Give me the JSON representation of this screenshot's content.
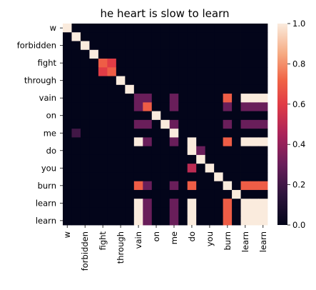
{
  "chart_data": {
    "type": "heatmap",
    "title": "he heart is slow to learn",
    "xlabel": "",
    "ylabel": "",
    "tokens": [
      "w",
      "",
      "forbidden",
      "",
      "fight",
      "",
      "through",
      "",
      "vain",
      "",
      "on",
      "",
      "me",
      "",
      "do",
      "",
      "you",
      "",
      "burn",
      "",
      "learn",
      "",
      "learn"
    ],
    "y_tick_labels": [
      "w",
      "forbidden",
      "fight",
      "through",
      "vain",
      "on",
      "me",
      "do",
      "you",
      "burn",
      "learn",
      "learn"
    ],
    "x_tick_labels": [
      "w",
      "forbidden",
      "fight",
      "through",
      "vain",
      "on",
      "me",
      "do",
      "you",
      "burn",
      "learn",
      "learn"
    ],
    "colorbar": {
      "min": 0.0,
      "max": 1.0,
      "ticks": [
        "0.0",
        "0.2",
        "0.4",
        "0.6",
        "0.8",
        "1.0"
      ]
    },
    "colormap": "rocket",
    "matrix": [
      [
        1,
        0,
        0,
        0,
        0,
        0,
        0,
        0,
        0,
        0,
        0,
        0,
        0,
        0,
        0,
        0,
        0,
        0,
        0,
        0,
        0,
        0,
        0
      ],
      [
        0,
        1,
        0,
        0,
        0,
        0,
        0,
        0,
        0,
        0,
        0,
        0,
        0,
        0,
        0,
        0,
        0,
        0,
        0,
        0,
        0,
        0,
        0
      ],
      [
        0,
        0,
        1,
        0,
        0,
        0,
        0,
        0,
        0,
        0,
        0,
        0,
        0,
        0,
        0,
        0,
        0,
        0,
        0,
        0,
        0,
        0,
        0
      ],
      [
        0,
        0,
        0,
        1,
        0,
        0,
        0,
        0,
        0,
        0,
        0,
        0,
        0,
        0,
        0,
        0,
        0,
        0,
        0,
        0,
        0,
        0,
        0
      ],
      [
        0,
        0,
        0,
        0,
        0.7,
        0.6,
        0,
        0,
        0,
        0,
        0,
        0,
        0,
        0,
        0,
        0,
        0,
        0,
        0,
        0,
        0,
        0,
        0
      ],
      [
        0,
        0,
        0,
        0,
        0.6,
        0.7,
        0,
        0,
        0,
        0,
        0,
        0,
        0,
        0,
        0,
        0,
        0,
        0,
        0,
        0,
        0,
        0,
        0
      ],
      [
        0,
        0,
        0,
        0,
        0,
        0,
        1,
        0,
        0,
        0,
        0,
        0,
        0,
        0,
        0,
        0,
        0,
        0,
        0,
        0,
        0,
        0,
        0
      ],
      [
        0,
        0,
        0,
        0,
        0,
        0,
        0,
        1,
        0,
        0,
        0,
        0,
        0,
        0,
        0,
        0,
        0,
        0,
        0,
        0,
        0,
        0,
        0
      ],
      [
        0,
        0,
        0,
        0,
        0,
        0,
        0,
        0,
        0.3,
        0.3,
        0,
        0,
        0.3,
        0,
        0,
        0,
        0,
        0,
        0.7,
        0,
        1,
        1,
        1
      ],
      [
        0,
        0,
        0,
        0,
        0,
        0,
        0,
        0,
        0.3,
        0.7,
        0,
        0,
        0.3,
        0,
        0,
        0,
        0,
        0,
        0.3,
        0,
        0.3,
        0.3,
        0.3
      ],
      [
        0,
        0,
        0,
        0,
        0,
        0,
        0,
        0,
        0,
        0,
        1,
        0,
        0,
        0,
        0,
        0,
        0,
        0,
        0,
        0,
        0,
        0,
        0
      ],
      [
        0,
        0,
        0,
        0,
        0,
        0,
        0,
        0,
        0.3,
        0.3,
        0,
        1,
        0.3,
        0,
        0,
        0,
        0,
        0,
        0.3,
        0,
        0.3,
        0.3,
        0.3
      ],
      [
        0,
        0.2,
        0,
        0,
        0,
        0,
        0,
        0,
        0,
        0,
        0,
        0,
        1,
        0,
        0,
        0,
        0,
        0,
        0,
        0,
        0,
        0,
        0
      ],
      [
        0,
        0,
        0,
        0,
        0,
        0,
        0,
        0,
        1,
        0.3,
        0,
        0,
        0.3,
        0,
        1,
        0,
        0,
        0,
        0.7,
        0,
        1,
        1,
        1
      ],
      [
        0,
        0,
        0,
        0,
        0,
        0,
        0,
        0,
        0,
        0,
        0,
        0,
        0,
        0,
        1,
        0.3,
        0,
        0,
        0,
        0,
        0,
        0,
        0
      ],
      [
        0,
        0,
        0,
        0,
        0,
        0,
        0,
        0,
        0,
        0,
        0,
        0,
        0,
        0,
        0,
        1,
        0,
        0,
        0,
        0,
        0,
        0,
        0
      ],
      [
        0,
        0,
        0,
        0,
        0,
        0,
        0,
        0,
        0,
        0,
        0,
        0,
        0,
        0,
        0.5,
        0,
        1,
        0,
        0,
        0,
        0,
        0,
        0
      ],
      [
        0,
        0,
        0,
        0,
        0,
        0,
        0,
        0,
        0,
        0,
        0,
        0,
        0,
        0,
        0,
        0,
        0,
        1,
        0,
        0,
        0,
        0,
        0
      ],
      [
        0,
        0,
        0,
        0,
        0,
        0,
        0,
        0,
        0.7,
        0.3,
        0,
        0,
        0.3,
        0,
        0.7,
        0,
        0,
        0,
        1,
        0,
        0.7,
        0.7,
        0.7
      ],
      [
        0,
        0,
        0,
        0,
        0,
        0,
        0,
        0,
        0,
        0,
        0,
        0,
        0,
        0,
        0,
        0,
        0,
        0,
        0,
        1,
        0,
        0,
        0
      ],
      [
        0,
        0,
        0,
        0,
        0,
        0,
        0,
        0,
        1,
        0.3,
        0,
        0,
        0.3,
        0,
        1,
        0,
        0,
        0,
        0.7,
        0,
        1,
        1,
        1
      ],
      [
        0,
        0,
        0,
        0,
        0,
        0,
        0,
        0,
        1,
        0.3,
        0,
        0,
        0.3,
        0,
        1,
        0,
        0,
        0,
        0.7,
        0,
        1,
        1,
        1
      ],
      [
        0,
        0,
        0,
        0,
        0,
        0,
        0,
        0,
        1,
        0.3,
        0,
        0,
        0.3,
        0,
        1,
        0,
        0,
        0,
        0.7,
        0,
        1,
        1,
        1
      ]
    ]
  }
}
